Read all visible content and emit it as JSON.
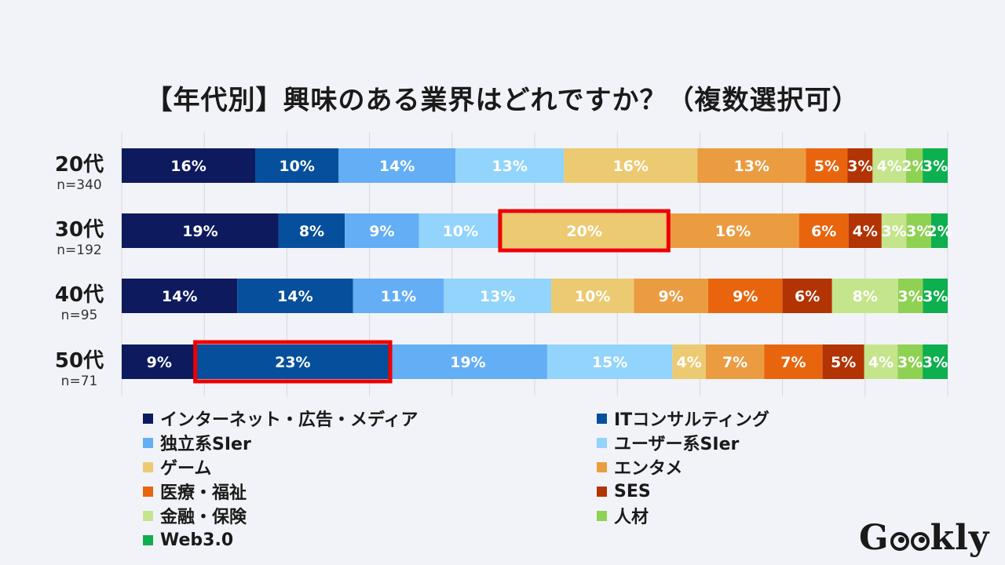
{
  "chart_data": {
    "type": "bar",
    "orientation": "horizontal-stacked-100",
    "title": "【年代別】興味のある業界はどれですか？（複数選択可）",
    "categories": [
      {
        "label": "20代",
        "n": "n=340"
      },
      {
        "label": "30代",
        "n": "n=192"
      },
      {
        "label": "40代",
        "n": "n=95"
      },
      {
        "label": "50代",
        "n": "n=71"
      }
    ],
    "series": [
      {
        "name": "インターネット・広告・メディア",
        "color": "#0d1a5e",
        "values": [
          16,
          19,
          14,
          9
        ]
      },
      {
        "name": "ITコンサルティング",
        "color": "#064f9c",
        "values": [
          10,
          8,
          14,
          23
        ]
      },
      {
        "name": "独立系SIer",
        "color": "#63aef5",
        "values": [
          14,
          9,
          11,
          19
        ]
      },
      {
        "name": "ユーザー系SIer",
        "color": "#92d4fb",
        "values": [
          13,
          10,
          13,
          15
        ]
      },
      {
        "name": "ゲーム",
        "color": "#ecca72",
        "values": [
          16,
          20,
          10,
          4
        ]
      },
      {
        "name": "エンタメ",
        "color": "#eb9c40",
        "values": [
          13,
          16,
          9,
          7
        ]
      },
      {
        "name": "医療・福祉",
        "color": "#e8650e",
        "values": [
          5,
          6,
          9,
          7
        ]
      },
      {
        "name": "SES",
        "color": "#b23303",
        "values": [
          3,
          4,
          6,
          5
        ]
      },
      {
        "name": "金融・保険",
        "color": "#c4e58c",
        "values": [
          4,
          3,
          8,
          4
        ]
      },
      {
        "name": "人材",
        "color": "#8fd153",
        "values": [
          2,
          3,
          3,
          3
        ]
      },
      {
        "name": "Web3.0",
        "color": "#0daf4f",
        "values": [
          3,
          2,
          3,
          3
        ]
      }
    ],
    "highlights": [
      {
        "category": 1,
        "series": 4,
        "color": "#ee0000"
      },
      {
        "category": 3,
        "series": 1,
        "color": "#ee0000"
      }
    ],
    "value_suffix": "%",
    "grid": true,
    "legend_position": "bottom"
  },
  "logo": {
    "text": "Geekly",
    "prefix": "G",
    "suffix": "kly"
  }
}
